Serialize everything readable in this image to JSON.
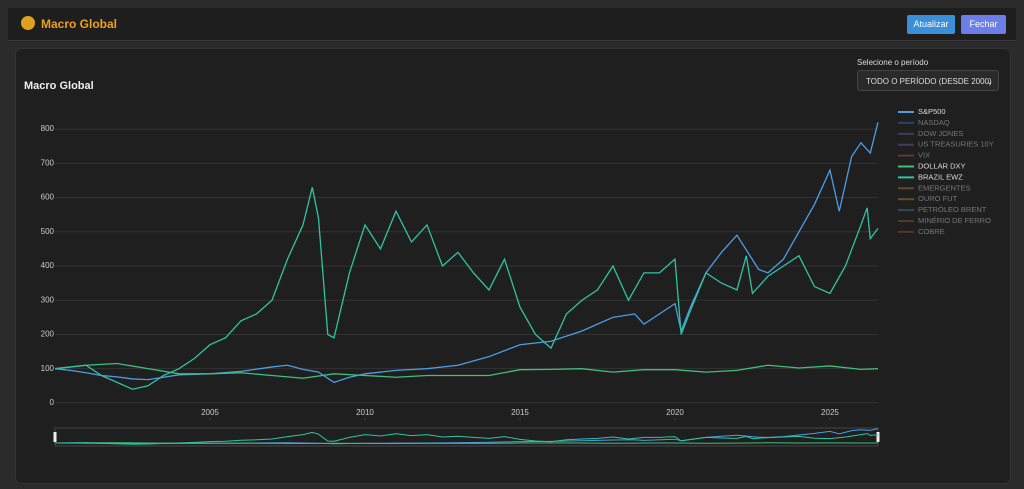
{
  "header": {
    "title": "Macro Global",
    "buttons": [
      "Atualizar",
      "Fechar"
    ]
  },
  "period": {
    "label": "Selecione o período",
    "selected": "TODO O PERÍODO (DESDE 2000)"
  },
  "chart_data": {
    "type": "line",
    "title": "Macro Global",
    "xlim": [
      2000,
      2026.55
    ],
    "xticks": [
      2005,
      2010,
      2015,
      2020,
      2025
    ],
    "ylim": [
      -50,
      850
    ],
    "yticks": [
      0,
      100,
      200,
      300,
      400,
      500,
      600,
      700,
      800
    ],
    "grid": true,
    "legend": "right",
    "range_slider": true,
    "series": [
      {
        "name": "S&P500",
        "color": "#4a9ee8",
        "visible": true,
        "x": [
          2000,
          2000.5,
          2001,
          2001.5,
          2002,
          2002.5,
          2003,
          2003.5,
          2004,
          2005,
          2006,
          2007,
          2007.5,
          2008,
          2008.5,
          2009,
          2009.5,
          2010,
          2011,
          2012,
          2013,
          2014,
          2015,
          2015.5,
          2016,
          2017,
          2018,
          2018.7,
          2019,
          2020,
          2020.2,
          2020.5,
          2021,
          2021.5,
          2022,
          2022.7,
          2023,
          2023.5,
          2024,
          2024.5,
          2025,
          2025.3,
          2025.7,
          2026,
          2026.3,
          2026.55
        ],
        "values": [
          100,
          95,
          88,
          80,
          76,
          70,
          68,
          75,
          82,
          85,
          92,
          105,
          110,
          98,
          90,
          60,
          75,
          85,
          95,
          100,
          110,
          135,
          170,
          175,
          180,
          210,
          250,
          260,
          230,
          290,
          210,
          280,
          380,
          440,
          490,
          390,
          380,
          420,
          500,
          580,
          680,
          560,
          720,
          760,
          730,
          820
        ]
      },
      {
        "name": "NASDAQ",
        "color": "#3f6ea8",
        "visible": false
      },
      {
        "name": "DOW JONES",
        "color": "#6a5a9c",
        "visible": false
      },
      {
        "name": "US TREASURIES 10Y",
        "color": "#7a5aa8",
        "visible": false
      },
      {
        "name": "VIX",
        "color": "#b0504a",
        "visible": false
      },
      {
        "name": "DOLLAR DXY",
        "color": "#3ec07a",
        "visible": true,
        "x": [
          2000,
          2001,
          2002,
          2003,
          2004,
          2005,
          2006,
          2007,
          2008,
          2009,
          2010,
          2011,
          2012,
          2013,
          2014,
          2015,
          2016,
          2017,
          2018,
          2019,
          2020,
          2021,
          2022,
          2023,
          2024,
          2025,
          2026,
          2026.55
        ],
        "values": [
          100,
          110,
          115,
          100,
          85,
          85,
          88,
          80,
          72,
          85,
          80,
          75,
          80,
          80,
          80,
          97,
          98,
          100,
          90,
          97,
          97,
          90,
          95,
          110,
          102,
          108,
          98,
          100
        ]
      },
      {
        "name": "BRAZIL EWZ",
        "color": "#2ec4a4",
        "visible": true,
        "x": [
          2000,
          2001,
          2001.5,
          2002.5,
          2003,
          2003.5,
          2004,
          2004.5,
          2005,
          2005.5,
          2006,
          2006.5,
          2007,
          2007.5,
          2008,
          2008.3,
          2008.5,
          2008.8,
          2009,
          2009.5,
          2010,
          2010.5,
          2011,
          2011.5,
          2012,
          2012.5,
          2013,
          2013.5,
          2014,
          2014.5,
          2015,
          2015.5,
          2016,
          2016.5,
          2017,
          2017.5,
          2018,
          2018.5,
          2019,
          2019.5,
          2020,
          2020.2,
          2020.5,
          2021,
          2021.5,
          2022,
          2022.3,
          2022.5,
          2023,
          2023.5,
          2024,
          2024.5,
          2025,
          2025.5,
          2026,
          2026.2,
          2026.3,
          2026.55
        ],
        "values": [
          100,
          110,
          80,
          40,
          50,
          80,
          100,
          130,
          170,
          190,
          240,
          260,
          300,
          420,
          520,
          630,
          540,
          200,
          190,
          380,
          520,
          450,
          560,
          470,
          520,
          400,
          440,
          380,
          330,
          420,
          280,
          200,
          160,
          260,
          300,
          330,
          400,
          300,
          380,
          380,
          420,
          200,
          270,
          380,
          350,
          330,
          430,
          320,
          370,
          400,
          430,
          340,
          320,
          400,
          520,
          570,
          480,
          510
        ]
      },
      {
        "name": "EMERGENTES",
        "color": "#b07a3a",
        "visible": false
      },
      {
        "name": "OURO FUT",
        "color": "#b08a3a",
        "visible": false
      },
      {
        "name": "PETRÓLEO BRENT",
        "color": "#4a7a9c",
        "visible": false
      },
      {
        "name": "MINÉRIO DE FERRO",
        "color": "#8a5a3a",
        "visible": false
      },
      {
        "name": "COBRE",
        "color": "#a04a3a",
        "visible": false
      }
    ]
  }
}
